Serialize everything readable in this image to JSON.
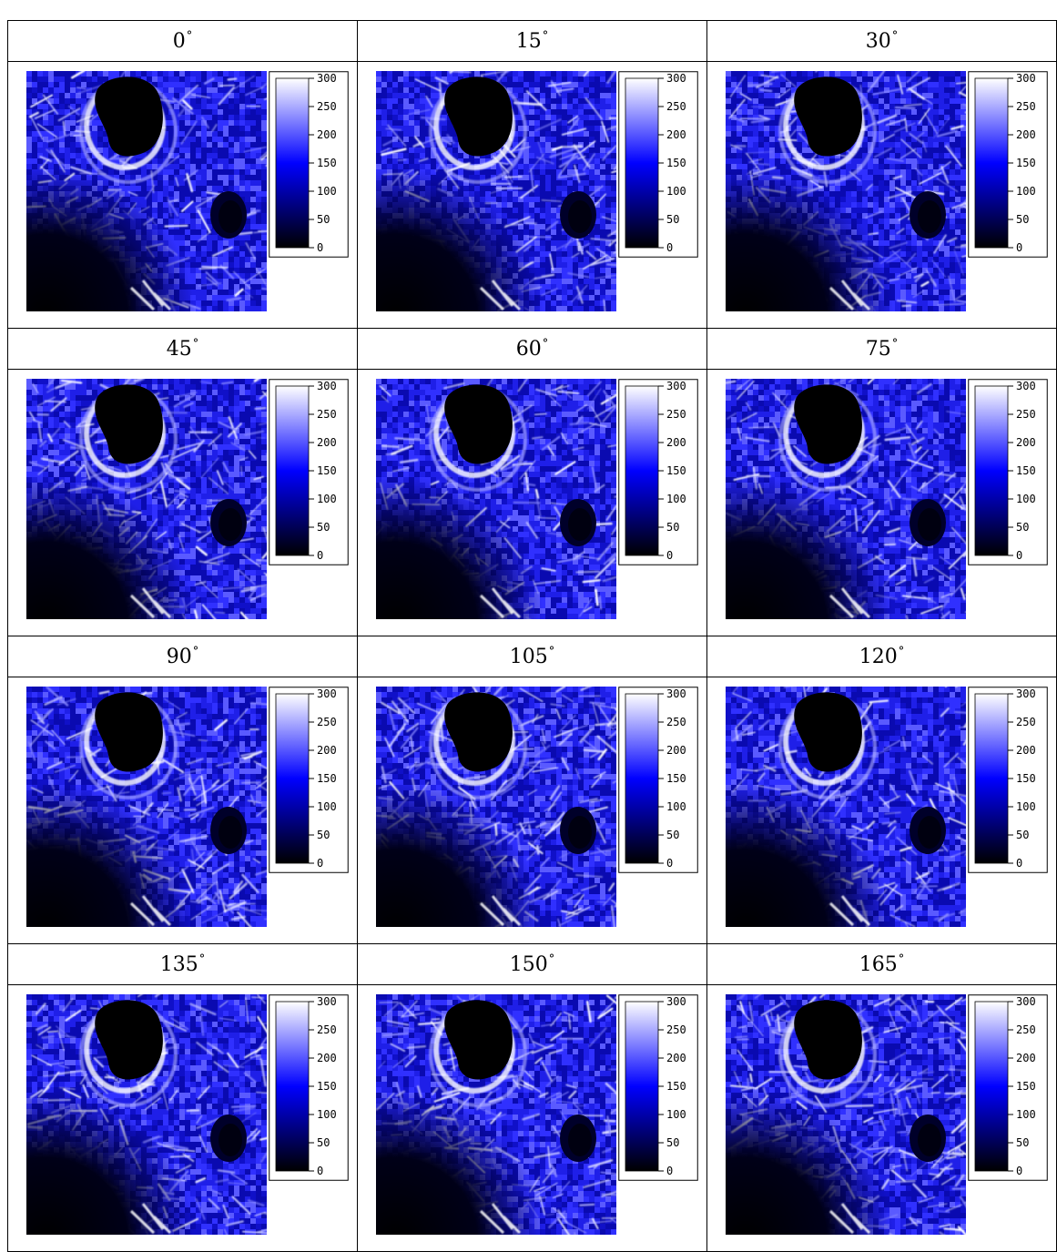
{
  "angles": [
    {
      "label": "0",
      "unit": "°"
    },
    {
      "label": "15",
      "unit": "°"
    },
    {
      "label": "30",
      "unit": "°"
    },
    {
      "label": "45",
      "unit": "°"
    },
    {
      "label": "60",
      "unit": "°"
    },
    {
      "label": "75",
      "unit": "°"
    },
    {
      "label": "90",
      "unit": "°"
    },
    {
      "label": "105",
      "unit": "°"
    },
    {
      "label": "120",
      "unit": "°"
    },
    {
      "label": "135",
      "unit": "°"
    },
    {
      "label": "150",
      "unit": "°"
    },
    {
      "label": "165",
      "unit": "°"
    }
  ],
  "colorbar": {
    "ticks": [
      "300",
      "250",
      "200",
      "150",
      "100",
      "50",
      "0"
    ],
    "range": [
      0,
      300
    ],
    "colors": [
      "#000000",
      "#0000ff",
      "#ffffff"
    ]
  }
}
